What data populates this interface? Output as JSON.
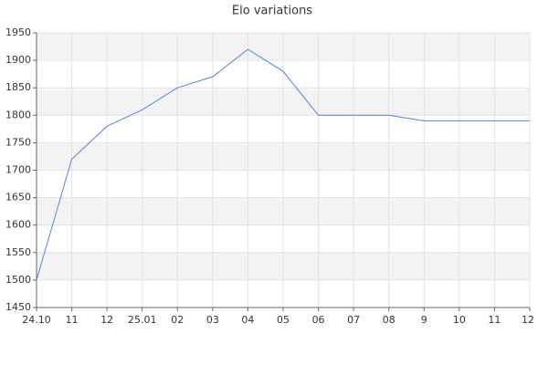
{
  "chart_data": {
    "type": "line",
    "title": "Elo variations",
    "categories": [
      "24.10",
      "11",
      "12",
      "25.01",
      "02",
      "03",
      "04",
      "05",
      "06",
      "07",
      "08",
      "9",
      "10",
      "11",
      "12"
    ],
    "values": [
      1500,
      1720,
      1780,
      1810,
      1850,
      1870,
      1920,
      1880,
      1800,
      1800,
      1800,
      1790,
      1790,
      1790,
      1790
    ],
    "color": "#4a86e8",
    "ylim": [
      1450,
      1950
    ],
    "yticks": [
      1450,
      1500,
      1550,
      1600,
      1650,
      1700,
      1750,
      1800,
      1850,
      1900,
      1950
    ],
    "grid": true
  }
}
